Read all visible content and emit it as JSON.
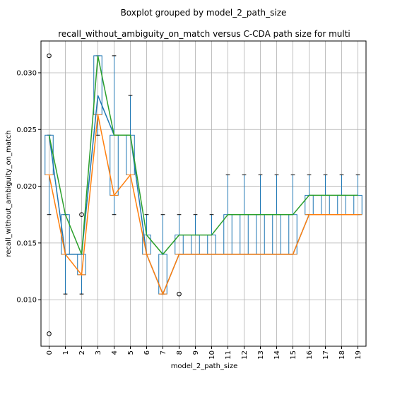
{
  "chart_data": {
    "type": "boxplot",
    "suptitle": "Boxplot grouped by model_2_path_size",
    "title": "recall_without_ambiguity_on_match versus C-CDA path size for multi",
    "xlabel": "model_2_path_size",
    "ylabel": "recall_without_ambiguity_on_match",
    "categories": [
      "0",
      "1",
      "2",
      "3",
      "4",
      "5",
      "6",
      "7",
      "8",
      "9",
      "10",
      "11",
      "12",
      "13",
      "14",
      "15",
      "16",
      "17",
      "18",
      "19"
    ],
    "ylim": [
      0.0059,
      0.0328
    ],
    "yticks": [
      "0.010",
      "0.015",
      "0.020",
      "0.025",
      "0.030"
    ],
    "ytick_values": [
      0.01,
      0.015,
      0.02,
      0.025,
      0.03
    ],
    "grid": true,
    "boxes": [
      {
        "q1": 0.021,
        "median": 0.021,
        "q3": 0.0245,
        "whislo": 0.0175,
        "whishi": 0.0245,
        "fliers": [
          0.007,
          0.0315
        ]
      },
      {
        "q1": 0.014,
        "median": 0.014,
        "q3": 0.0175,
        "whislo": 0.0105,
        "whishi": 0.0175,
        "fliers": []
      },
      {
        "q1": 0.0122,
        "median": 0.0122,
        "q3": 0.014,
        "whislo": 0.0105,
        "whishi": 0.014,
        "fliers": [
          0.0175
        ]
      },
      {
        "q1": 0.0263,
        "median": 0.0263,
        "q3": 0.0315,
        "whislo": 0.0245,
        "whishi": 0.0315,
        "fliers": []
      },
      {
        "q1": 0.0192,
        "median": 0.0192,
        "q3": 0.0245,
        "whislo": 0.0175,
        "whishi": 0.0315,
        "fliers": []
      },
      {
        "q1": 0.021,
        "median": 0.021,
        "q3": 0.0245,
        "whislo": 0.021,
        "whishi": 0.028,
        "fliers": []
      },
      {
        "q1": 0.014,
        "median": 0.014,
        "q3": 0.0157,
        "whislo": 0.014,
        "whishi": 0.0175,
        "fliers": []
      },
      {
        "q1": 0.0105,
        "median": 0.0105,
        "q3": 0.014,
        "whislo": 0.0105,
        "whishi": 0.0175,
        "fliers": []
      },
      {
        "q1": 0.014,
        "median": 0.014,
        "q3": 0.0157,
        "whislo": 0.014,
        "whishi": 0.0175,
        "fliers": [
          0.0105
        ]
      },
      {
        "q1": 0.014,
        "median": 0.014,
        "q3": 0.0157,
        "whislo": 0.014,
        "whishi": 0.0175,
        "fliers": []
      },
      {
        "q1": 0.014,
        "median": 0.014,
        "q3": 0.0157,
        "whislo": 0.014,
        "whishi": 0.0175,
        "fliers": []
      },
      {
        "q1": 0.014,
        "median": 0.014,
        "q3": 0.0175,
        "whislo": 0.014,
        "whishi": 0.021,
        "fliers": []
      },
      {
        "q1": 0.014,
        "median": 0.014,
        "q3": 0.0175,
        "whislo": 0.014,
        "whishi": 0.021,
        "fliers": []
      },
      {
        "q1": 0.014,
        "median": 0.014,
        "q3": 0.0175,
        "whislo": 0.014,
        "whishi": 0.021,
        "fliers": []
      },
      {
        "q1": 0.014,
        "median": 0.014,
        "q3": 0.0175,
        "whislo": 0.014,
        "whishi": 0.021,
        "fliers": []
      },
      {
        "q1": 0.014,
        "median": 0.014,
        "q3": 0.0175,
        "whislo": 0.014,
        "whishi": 0.021,
        "fliers": []
      },
      {
        "q1": 0.0175,
        "median": 0.0175,
        "q3": 0.0192,
        "whislo": 0.0175,
        "whishi": 0.021,
        "fliers": []
      },
      {
        "q1": 0.0175,
        "median": 0.0175,
        "q3": 0.0192,
        "whislo": 0.0175,
        "whishi": 0.021,
        "fliers": []
      },
      {
        "q1": 0.0175,
        "median": 0.0175,
        "q3": 0.0192,
        "whislo": 0.0175,
        "whishi": 0.021,
        "fliers": []
      },
      {
        "q1": 0.0175,
        "median": 0.0175,
        "q3": 0.0192,
        "whislo": 0.0175,
        "whishi": 0.021,
        "fliers": []
      }
    ],
    "lines": [
      {
        "color": "#1f77b4",
        "values": [
          0.0245,
          0.014,
          0.014,
          0.028,
          0.0245,
          0.0245,
          0.014,
          0.0105,
          0.014,
          0.014,
          0.014,
          0.014,
          0.014,
          0.014,
          0.014,
          0.014,
          0.0175,
          0.0175,
          0.0175,
          0.0175
        ]
      },
      {
        "color": "#ff7f0e",
        "values": [
          0.021,
          0.014,
          0.0122,
          0.0263,
          0.0192,
          0.021,
          0.014,
          0.0105,
          0.014,
          0.014,
          0.014,
          0.014,
          0.014,
          0.014,
          0.014,
          0.014,
          0.0175,
          0.0175,
          0.0175,
          0.0175
        ]
      },
      {
        "color": "#2ca02c",
        "values": [
          0.0245,
          0.0175,
          0.014,
          0.0315,
          0.0245,
          0.0245,
          0.0157,
          0.014,
          0.0157,
          0.0157,
          0.0157,
          0.0175,
          0.0175,
          0.0175,
          0.0175,
          0.0175,
          0.0192,
          0.0192,
          0.0192,
          0.0192
        ]
      }
    ],
    "colors": {
      "box": "#1f77b4",
      "median": "#ff7f0e",
      "whisker_cap": "#000000",
      "grid": "#b0b0b0",
      "axis": "#000000"
    }
  }
}
